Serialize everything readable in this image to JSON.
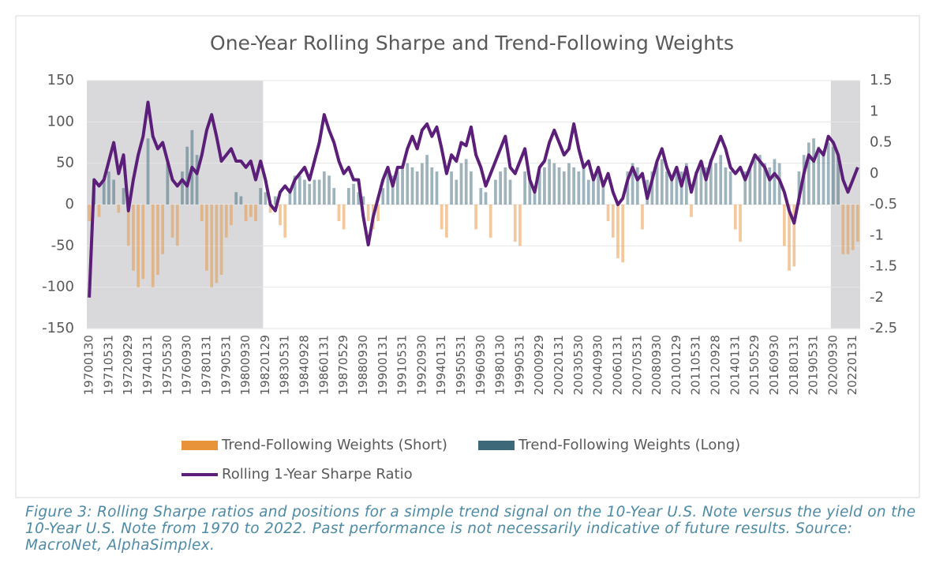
{
  "chart_data": {
    "type": "bar",
    "title": "One-Year Rolling Sharpe and Trend-Following Weights",
    "categories": [
      "19700130",
      null,
      null,
      null,
      "19710531",
      null,
      null,
      null,
      "19720929",
      null,
      null,
      null,
      "19740131",
      null,
      null,
      null,
      "19750530",
      null,
      null,
      null,
      "19760930",
      null,
      null,
      null,
      "19780131",
      null,
      null,
      null,
      "19790531",
      null,
      null,
      null,
      "19800930",
      null,
      null,
      null,
      "19820129",
      null,
      null,
      null,
      "19830531",
      null,
      null,
      null,
      "19840928",
      null,
      null,
      null,
      "19860131",
      null,
      null,
      null,
      "19870529",
      null,
      null,
      null,
      "19880930",
      null,
      null,
      null,
      "19900131",
      null,
      null,
      null,
      "19910531",
      null,
      null,
      null,
      "19920930",
      null,
      null,
      null,
      "19940131",
      null,
      null,
      null,
      "19950531",
      null,
      null,
      null,
      "19960930",
      null,
      null,
      null,
      "19980130",
      null,
      null,
      null,
      "19990531",
      null,
      null,
      null,
      "20000929",
      null,
      null,
      null,
      "20020131",
      null,
      null,
      null,
      "20030530",
      null,
      null,
      null,
      "20040930",
      null,
      null,
      null,
      "20060131",
      null,
      null,
      null,
      "20070531",
      null,
      null,
      null,
      "20080930",
      null,
      null,
      null,
      "20100129",
      null,
      null,
      null,
      "20110531",
      null,
      null,
      null,
      "20120928",
      null,
      null,
      null,
      "20140131",
      null,
      null,
      null,
      "20150529",
      null,
      null,
      null,
      "20160930",
      null,
      null,
      null,
      "20180131",
      null,
      null,
      null,
      "20190531",
      null,
      null,
      null,
      "20200930",
      null,
      null,
      null,
      "20220131",
      null
    ],
    "series": [
      {
        "name": "Trend-Following Weights (Short)",
        "type": "bar",
        "color": "#e8923a",
        "values": [
          -20,
          null,
          -15,
          null,
          null,
          null,
          -10,
          null,
          -50,
          -80,
          -100,
          -90,
          null,
          -100,
          -85,
          -60,
          null,
          -40,
          -50,
          null,
          null,
          null,
          null,
          -20,
          -80,
          -100,
          -95,
          -85,
          -40,
          -25,
          null,
          null,
          -20,
          -15,
          -20,
          null,
          null,
          -10,
          null,
          -25,
          -40,
          null,
          null,
          null,
          null,
          null,
          null,
          null,
          null,
          null,
          null,
          -20,
          -30,
          null,
          null,
          null,
          null,
          -20,
          -30,
          -20,
          null,
          null,
          null,
          null,
          null,
          null,
          null,
          null,
          null,
          null,
          null,
          null,
          -30,
          -40,
          null,
          null,
          null,
          null,
          null,
          -30,
          null,
          null,
          -40,
          null,
          null,
          null,
          null,
          -45,
          -50,
          null,
          null,
          null,
          null,
          null,
          null,
          null,
          null,
          null,
          null,
          null,
          null,
          null,
          null,
          null,
          null,
          null,
          -20,
          -40,
          -65,
          -70,
          null,
          null,
          null,
          -30,
          null,
          null,
          null,
          null,
          null,
          null,
          null,
          null,
          null,
          -15,
          null,
          null,
          null,
          null,
          null,
          null,
          null,
          null,
          -30,
          -45,
          null,
          null,
          null,
          null,
          null,
          null,
          null,
          null,
          -50,
          -80,
          -75,
          null,
          null,
          null,
          null,
          null,
          null,
          null,
          null,
          null,
          -60,
          -60,
          -55,
          -45
        ]
      },
      {
        "name": "Trend-Following Weights (Long)",
        "type": "bar",
        "color": "#3d6878",
        "values": [
          null,
          20,
          null,
          30,
          40,
          30,
          null,
          20,
          null,
          null,
          null,
          null,
          80,
          null,
          null,
          null,
          50,
          null,
          null,
          40,
          70,
          90,
          60,
          null,
          null,
          null,
          null,
          null,
          null,
          null,
          15,
          10,
          null,
          null,
          null,
          20,
          15,
          null,
          10,
          null,
          null,
          15,
          35,
          35,
          30,
          25,
          30,
          30,
          40,
          35,
          20,
          null,
          null,
          20,
          25,
          15,
          10,
          null,
          null,
          null,
          20,
          40,
          35,
          40,
          45,
          50,
          45,
          40,
          50,
          60,
          45,
          40,
          null,
          null,
          40,
          30,
          50,
          55,
          40,
          null,
          20,
          15,
          null,
          30,
          40,
          45,
          30,
          null,
          null,
          40,
          30,
          20,
          40,
          45,
          55,
          50,
          45,
          40,
          50,
          45,
          40,
          45,
          30,
          35,
          40,
          30,
          null,
          null,
          null,
          null,
          40,
          50,
          45,
          null,
          30,
          40,
          50,
          55,
          40,
          35,
          45,
          40,
          50,
          null,
          40,
          50,
          45,
          55,
          50,
          60,
          45,
          40,
          null,
          null,
          40,
          45,
          55,
          60,
          50,
          45,
          55,
          50,
          null,
          null,
          null,
          40,
          60,
          75,
          80,
          70,
          65,
          75,
          70,
          60,
          null,
          null,
          null,
          null
        ]
      },
      {
        "name": "Rolling 1-Year Sharpe Ratio",
        "type": "line",
        "axis": "y2",
        "color": "#5b1f7a",
        "values": [
          -2.0,
          -0.1,
          -0.2,
          -0.1,
          0.2,
          0.5,
          0.0,
          0.3,
          -0.6,
          -0.1,
          0.3,
          0.6,
          1.15,
          0.6,
          0.4,
          0.5,
          0.2,
          -0.1,
          -0.2,
          -0.1,
          -0.2,
          0.1,
          0.0,
          0.3,
          0.7,
          0.95,
          0.6,
          0.2,
          0.3,
          0.4,
          0.2,
          0.2,
          0.1,
          0.2,
          -0.1,
          0.2,
          -0.1,
          -0.5,
          -0.6,
          -0.3,
          -0.2,
          -0.3,
          -0.1,
          0.0,
          0.1,
          -0.1,
          0.2,
          0.5,
          0.95,
          0.7,
          0.5,
          0.2,
          0.0,
          0.1,
          -0.1,
          -0.1,
          -0.7,
          -1.15,
          -0.7,
          -0.4,
          -0.1,
          0.1,
          -0.2,
          0.1,
          0.1,
          0.4,
          0.6,
          0.4,
          0.7,
          0.8,
          0.6,
          0.75,
          0.4,
          0.0,
          0.3,
          0.2,
          0.5,
          0.45,
          0.75,
          0.3,
          0.1,
          -0.2,
          0.0,
          0.2,
          0.4,
          0.6,
          0.1,
          0.0,
          0.2,
          0.4,
          -0.1,
          -0.3,
          0.1,
          0.2,
          0.5,
          0.7,
          0.5,
          0.3,
          0.4,
          0.8,
          0.4,
          0.1,
          0.2,
          -0.1,
          0.1,
          -0.2,
          0.0,
          -0.3,
          -0.5,
          -0.4,
          -0.1,
          0.1,
          -0.1,
          0.0,
          -0.4,
          -0.1,
          0.2,
          0.4,
          0.1,
          -0.1,
          0.1,
          -0.2,
          0.1,
          -0.3,
          0.0,
          0.2,
          -0.1,
          0.2,
          0.4,
          0.6,
          0.4,
          0.1,
          0.0,
          0.1,
          -0.1,
          0.1,
          0.3,
          0.2,
          0.1,
          -0.1,
          0.0,
          -0.1,
          -0.3,
          -0.6,
          -0.8,
          -0.4,
          0.0,
          0.3,
          0.2,
          0.4,
          0.3,
          0.6,
          0.5,
          0.3,
          -0.1,
          -0.3,
          -0.1,
          0.1
        ]
      }
    ],
    "ylim": [
      -150,
      150
    ],
    "yticks": [
      -150,
      -100,
      -50,
      0,
      50,
      100,
      150
    ],
    "y2lim": [
      -2.5,
      1.5
    ],
    "y2ticks": [
      -2.5,
      -2,
      -1.5,
      -1,
      -0.5,
      0,
      0.5,
      1,
      1.5
    ],
    "grid": true,
    "shaded_periods": [
      {
        "from": "19700130",
        "to": "19820129"
      },
      {
        "from": "20200930"
      }
    ]
  },
  "caption": "Figure 3: Rolling Sharpe ratios and positions for a simple trend signal on the 10-Year U.S. Note versus the yield on the 10-Year U.S. Note from 1970 to 2022. Past performance is not necessarily indicative of future results. Source: MacroNet, AlphaSimplex."
}
